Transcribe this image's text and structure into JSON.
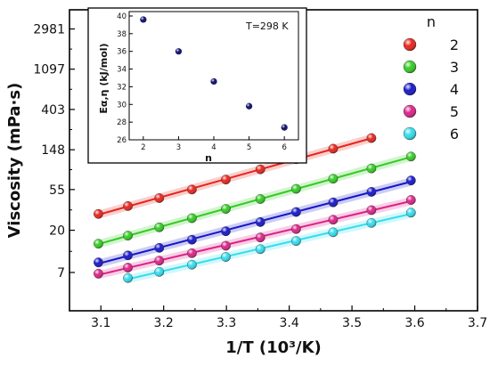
{
  "chart_data": [
    {
      "type": "scatter",
      "xlabel": "1/T (10³/K)",
      "ylabel": "Viscosity (mPa·s)",
      "xlim": [
        3.05,
        3.7
      ],
      "ylim_log": [
        2.7,
        4800
      ],
      "x_ticks": [
        "3.1",
        "3.2",
        "3.3",
        "3.4",
        "3.5",
        "3.6",
        "3.7"
      ],
      "y_ticks": [
        "7",
        "20",
        "55",
        "148",
        "403",
        "1097",
        "2981"
      ],
      "y_tick_values": [
        7,
        20,
        55,
        148,
        403,
        1097,
        2981
      ],
      "legend_title": "n",
      "legend_position": "right",
      "series": [
        {
          "name": "2",
          "color": "#e8241c",
          "x": [
            3.096,
            3.143,
            3.193,
            3.245,
            3.299,
            3.354,
            3.411,
            3.47,
            3.531
          ],
          "y": [
            30.0,
            36.5,
            44.5,
            55.0,
            70.5,
            91.0,
            117,
            152,
            198
          ]
        },
        {
          "name": "3",
          "color": "#33cc22",
          "x": [
            3.096,
            3.143,
            3.193,
            3.245,
            3.299,
            3.354,
            3.411,
            3.47,
            3.531,
            3.594
          ],
          "y": [
            14.3,
            17.5,
            21.5,
            27.0,
            34.0,
            43.5,
            56.0,
            72.0,
            93.0,
            125
          ]
        },
        {
          "name": "4",
          "color": "#1616cc",
          "x": [
            3.096,
            3.143,
            3.193,
            3.245,
            3.299,
            3.354,
            3.411,
            3.47,
            3.531,
            3.594
          ],
          "y": [
            9.0,
            10.7,
            12.9,
            15.8,
            19.5,
            24.5,
            31.5,
            40.0,
            52.0,
            69.0
          ]
        },
        {
          "name": "5",
          "color": "#dd2288",
          "x": [
            3.096,
            3.143,
            3.193,
            3.245,
            3.299,
            3.354,
            3.411,
            3.47,
            3.531,
            3.594
          ],
          "y": [
            6.8,
            7.9,
            9.4,
            11.3,
            13.6,
            16.7,
            20.6,
            26.0,
            33.0,
            42.5
          ]
        },
        {
          "name": "6",
          "color": "#33ddee",
          "x": [
            3.143,
            3.193,
            3.245,
            3.299,
            3.354,
            3.411,
            3.47,
            3.531,
            3.594
          ],
          "y": [
            6.1,
            7.1,
            8.5,
            10.3,
            12.5,
            15.3,
            19.0,
            24.0,
            31.0
          ]
        }
      ]
    },
    {
      "type": "scatter",
      "xlabel": "n",
      "ylabel": "Eα,η (kJ/mol)",
      "annotation": "T=298 K",
      "xlim": [
        1.6,
        6.4
      ],
      "ylim": [
        26,
        40.5
      ],
      "x_ticks": [
        "2",
        "3",
        "4",
        "5",
        "6"
      ],
      "y_ticks": [
        "26",
        "28",
        "30",
        "32",
        "34",
        "36",
        "38",
        "40"
      ],
      "color": "#0a0a6a",
      "x": [
        2,
        3,
        4,
        5,
        6
      ],
      "y": [
        39.6,
        36.0,
        32.6,
        29.8,
        27.4
      ]
    }
  ]
}
